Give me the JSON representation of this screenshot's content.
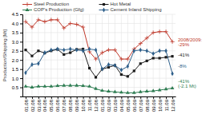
{
  "chart_data": {
    "type": "line",
    "y_label": "Production/Shipping [Mt]",
    "categories": [
      "01.08",
      "02.08",
      "03.08",
      "04.08",
      "05.08",
      "06.08",
      "07.08",
      "08.08",
      "09.08",
      "10.08",
      "11.08",
      "12.08",
      "01.09",
      "02.09",
      "03.09",
      "04.09",
      "05.09",
      "06.09",
      "07.09",
      "08.09",
      "09.09",
      "10.09",
      "11.09",
      "12.09"
    ],
    "series": [
      {
        "name": "Steel Production",
        "color": "#c0392b",
        "marker": "plus",
        "values": [
          4.1,
          3.8,
          4.2,
          4.1,
          4.2,
          4.2,
          3.75,
          4.0,
          3.95,
          3.8,
          2.45,
          2.05,
          2.4,
          2.55,
          2.55,
          2.05,
          2.05,
          2.6,
          2.9,
          3.2,
          3.5,
          3.55,
          3.55,
          3.0
        ]
      },
      {
        "name": "Hot Metal",
        "color": "#1a1a1a",
        "marker": "square",
        "values": [
          2.55,
          2.22,
          2.5,
          2.38,
          2.5,
          2.58,
          2.3,
          2.4,
          2.58,
          2.6,
          1.55,
          1.05,
          1.5,
          1.6,
          1.7,
          1.2,
          1.1,
          1.4,
          1.8,
          1.95,
          2.1,
          2.1,
          2.15,
          2.2
        ]
      },
      {
        "name": "COP's Production (Gfg)",
        "color": "#2e7d52",
        "marker": "triangle",
        "values": [
          0.55,
          0.5,
          0.55,
          0.55,
          0.55,
          0.58,
          0.6,
          0.6,
          0.6,
          0.58,
          0.55,
          0.42,
          0.32,
          0.28,
          0.25,
          0.22,
          0.2,
          0.2,
          0.25,
          0.28,
          0.3,
          0.35,
          0.4,
          0.45
        ]
      },
      {
        "name": "Cement Inland Shipping",
        "color": "#2e5f8a",
        "marker": "diamond",
        "values": [
          1.3,
          1.75,
          1.8,
          2.4,
          2.55,
          2.6,
          2.55,
          2.6,
          2.55,
          2.5,
          2.6,
          2.55,
          1.5,
          1.75,
          1.7,
          1.45,
          1.65,
          2.5,
          2.55,
          2.5,
          2.35,
          2.5,
          2.5,
          1.25
        ]
      }
    ],
    "ylim": [
      0,
      4.5
    ],
    "yticks": [
      0.5,
      {
        "value": 1,
        "label": "1.0"
      },
      1.5,
      {
        "value": 2,
        "label": "2.0"
      },
      2.5,
      {
        "value": 3,
        "label": "3.0"
      },
      3.5,
      {
        "value": 4,
        "label": "4.0"
      },
      4.5
    ],
    "grid": true,
    "legend": "upper right",
    "annotations": [
      {
        "text": "2008/2009:",
        "y": 3.1,
        "color": "#c0392b"
      },
      {
        "text": "-29%",
        "y": 2.9,
        "color": "#c0392b"
      },
      {
        "text": "-41%",
        "y": 2.25,
        "color": "#1a1a1a"
      },
      {
        "text": "-8%",
        "y": 1.65,
        "color": "#2e5f8a"
      },
      {
        "text": "-41%",
        "y": 0.82,
        "color": "#2e7d52"
      },
      {
        "text": "(-2.1 Mt)",
        "y": 0.55,
        "color": "#2e7d52"
      }
    ]
  }
}
